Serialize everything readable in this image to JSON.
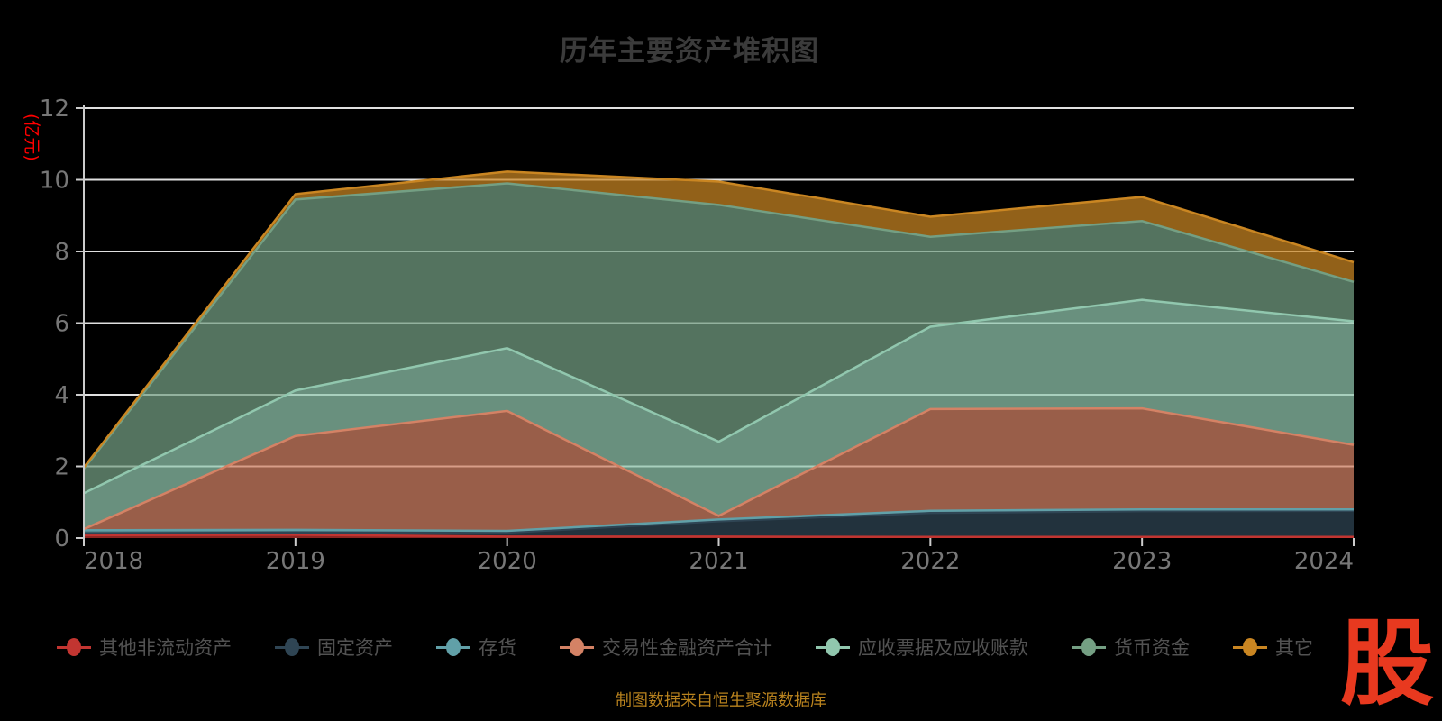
{
  "title": "历年主要资产堆积图",
  "y_axis_name": "(亿元)",
  "footer_note": "制图数据来自恒生聚源数据库",
  "watermark": "股",
  "colors": {
    "background": "#000000",
    "title": "#3b3b3b",
    "axis_label": "#777777",
    "axis_line": "#cccccc",
    "grid_line": "#e0e0e0",
    "legend_text": "#525252",
    "y_name": "#ff0000",
    "footer": "#b8821e",
    "watermark": "#e8391f"
  },
  "chart_data": {
    "type": "area",
    "stacked": true,
    "title": "历年主要资产堆积图",
    "xlabel": "",
    "ylabel": "(亿元)",
    "x": [
      "2018",
      "2019",
      "2020",
      "2021",
      "2022",
      "2023",
      "2024"
    ],
    "ylim": [
      0,
      12
    ],
    "yticks": [
      0,
      2,
      4,
      6,
      8,
      10,
      12
    ],
    "grid": true,
    "legend_position": "bottom",
    "area_opacity": 0.72,
    "series": [
      {
        "name": "其他非流动资产",
        "color": "#c23531",
        "values": [
          0.08,
          0.09,
          0.04,
          0.04,
          0.03,
          0.03,
          0.03
        ]
      },
      {
        "name": "固定资产",
        "color": "#2f4554",
        "values": [
          0.05,
          0.06,
          0.11,
          0.43,
          0.67,
          0.72,
          0.73
        ]
      },
      {
        "name": "存货",
        "color": "#61a0a8",
        "values": [
          0.09,
          0.08,
          0.05,
          0.05,
          0.06,
          0.05,
          0.04
        ]
      },
      {
        "name": "交易性金融资产合计",
        "color": "#d48265",
        "values": [
          0.03,
          2.62,
          3.35,
          0.1,
          2.84,
          2.82,
          1.8
        ]
      },
      {
        "name": "应收票据及应收账款",
        "color": "#91c7ae",
        "values": [
          1.0,
          1.27,
          1.75,
          2.07,
          2.3,
          3.03,
          3.45
        ]
      },
      {
        "name": "货币资金",
        "color": "#749f83",
        "values": [
          0.68,
          5.33,
          4.6,
          6.61,
          2.51,
          2.2,
          1.1
        ]
      },
      {
        "name": "其它",
        "color": "#ca8622",
        "values": [
          0.04,
          0.15,
          0.33,
          0.65,
          0.56,
          0.67,
          0.55
        ]
      }
    ]
  }
}
